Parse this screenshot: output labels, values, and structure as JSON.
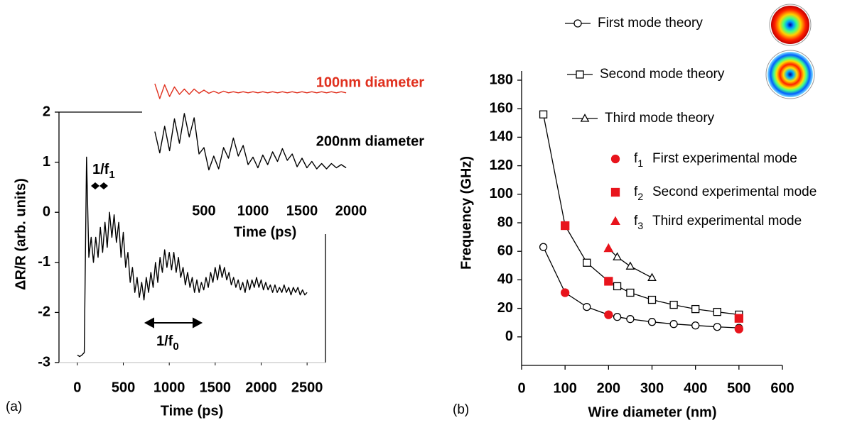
{
  "chart_data": [
    {
      "type": "line",
      "panel_label": "(a)",
      "x_label": "Time (ps)",
      "y_label": "ΔR/R (arb. units)",
      "color": "#000000",
      "xlim": [
        -200,
        2700
      ],
      "ylim": [
        -3,
        2
      ],
      "xticks": [
        0,
        500,
        1000,
        1500,
        2000,
        2500
      ],
      "yticks": [
        -3,
        -2,
        -1,
        0,
        1,
        2
      ],
      "annotations": [
        {
          "text": "1/f",
          "sub": "1"
        },
        {
          "text": "1/f",
          "sub": "0"
        }
      ],
      "x": [
        0,
        25,
        50,
        75,
        100,
        125,
        150,
        175,
        200,
        225,
        250,
        275,
        300,
        325,
        350,
        375,
        400,
        425,
        450,
        475,
        500,
        525,
        550,
        575,
        600,
        625,
        650,
        675,
        700,
        725,
        750,
        775,
        800,
        825,
        850,
        875,
        900,
        925,
        950,
        975,
        1000,
        1025,
        1050,
        1075,
        1100,
        1125,
        1150,
        1175,
        1200,
        1225,
        1250,
        1275,
        1300,
        1325,
        1350,
        1375,
        1400,
        1425,
        1450,
        1475,
        1500,
        1525,
        1550,
        1575,
        1600,
        1625,
        1650,
        1675,
        1700,
        1725,
        1750,
        1775,
        1800,
        1825,
        1850,
        1875,
        1900,
        1925,
        1950,
        1975,
        2000,
        2025,
        2050,
        2075,
        2100,
        2125,
        2150,
        2175,
        2200,
        2225,
        2250,
        2275,
        2300,
        2325,
        2350,
        2375,
        2400,
        2425,
        2450,
        2475,
        2500
      ],
      "values": [
        -2.85,
        -2.88,
        -2.85,
        -2.8,
        1.1,
        -0.9,
        -0.5,
        -1.0,
        -0.5,
        -0.9,
        -0.3,
        -0.8,
        -0.2,
        -0.7,
        0.0,
        -0.5,
        -0.05,
        -0.6,
        -0.2,
        -0.9,
        -0.4,
        -1.1,
        -0.8,
        -1.4,
        -1.1,
        -1.6,
        -1.3,
        -1.7,
        -1.4,
        -1.75,
        -1.3,
        -1.6,
        -1.2,
        -1.5,
        -1.0,
        -1.4,
        -0.9,
        -1.2,
        -0.75,
        -1.1,
        -0.8,
        -1.15,
        -0.8,
        -1.2,
        -0.9,
        -1.3,
        -1.1,
        -1.45,
        -1.2,
        -1.5,
        -1.3,
        -1.6,
        -1.35,
        -1.6,
        -1.4,
        -1.55,
        -1.3,
        -1.5,
        -1.2,
        -1.4,
        -1.1,
        -1.35,
        -1.05,
        -1.3,
        -1.1,
        -1.35,
        -1.2,
        -1.45,
        -1.3,
        -1.5,
        -1.35,
        -1.55,
        -1.4,
        -1.6,
        -1.35,
        -1.55,
        -1.35,
        -1.5,
        -1.3,
        -1.5,
        -1.35,
        -1.55,
        -1.4,
        -1.55,
        -1.45,
        -1.6,
        -1.45,
        -1.6,
        -1.5,
        -1.6,
        -1.45,
        -1.6,
        -1.5,
        -1.65,
        -1.5,
        -1.6,
        -1.5,
        -1.65,
        -1.55,
        -1.65,
        -1.6
      ]
    },
    {
      "type": "line",
      "x_label": "Time (ps)",
      "xlim": [
        -130,
        2000
      ],
      "ylim": [
        0,
        10
      ],
      "xticks": [
        500,
        1000,
        1500,
        2000
      ],
      "x": [
        0,
        50,
        100,
        150,
        200,
        250,
        300,
        350,
        400,
        450,
        500,
        550,
        600,
        650,
        700,
        750,
        800,
        850,
        900,
        950,
        1000,
        1050,
        1100,
        1150,
        1200,
        1250,
        1300,
        1350,
        1400,
        1450,
        1500,
        1550,
        1600,
        1650,
        1700,
        1750,
        1800,
        1850,
        1900,
        1950
      ],
      "series": [
        {
          "name": "100nm diameter",
          "color": "#e0301e",
          "values": [
            8.8,
            7.4,
            8.7,
            7.6,
            8.5,
            7.8,
            8.3,
            7.8,
            8.3,
            7.9,
            8.2,
            7.9,
            8.1,
            7.9,
            8.1,
            7.95,
            8.05,
            7.95,
            8.05,
            7.95,
            8.05,
            7.95,
            8.05,
            7.95,
            8.05,
            7.95,
            8.05,
            7.95,
            8.05,
            7.95,
            8.05,
            7.95,
            8.05,
            7.95,
            8.05,
            7.95,
            8.05,
            7.95,
            8.05,
            7.95
          ]
        },
        {
          "name": "200nm diameter",
          "color": "#000000",
          "values": [
            4.3,
            2.3,
            4.8,
            2.5,
            5.5,
            3.2,
            6.0,
            3.8,
            5.6,
            2.2,
            2.8,
            0.7,
            2.0,
            0.8,
            2.8,
            1.8,
            3.7,
            2.0,
            3.0,
            1.2,
            1.9,
            0.9,
            2.1,
            1.2,
            2.4,
            1.5,
            2.7,
            1.6,
            2.2,
            1.0,
            1.8,
            0.9,
            1.5,
            0.8,
            1.3,
            0.8,
            1.3,
            0.9,
            1.2,
            0.9
          ]
        }
      ]
    },
    {
      "type": "scatter",
      "panel_label": "(b)",
      "x_label": "Wire diameter (nm)",
      "y_label": "Frequency (GHz)",
      "xlim": [
        0,
        600
      ],
      "ylim": [
        -20,
        180
      ],
      "xticks": [
        0,
        100,
        200,
        300,
        400,
        500,
        600
      ],
      "yticks": [
        0,
        20,
        40,
        60,
        80,
        100,
        120,
        140,
        160,
        180
      ],
      "series": [
        {
          "name": "First mode theory",
          "marker": "circle",
          "color": "#000000",
          "filled": false,
          "connect": true,
          "x": [
            50,
            100,
            150,
            200,
            220,
            250,
            300,
            350,
            400,
            450,
            500
          ],
          "values": [
            63,
            31,
            21,
            15.5,
            14,
            12.5,
            10.5,
            9,
            8,
            7,
            6.3
          ]
        },
        {
          "name": "Second mode theory",
          "marker": "square",
          "color": "#000000",
          "filled": false,
          "connect": true,
          "x": [
            50,
            100,
            150,
            200,
            220,
            250,
            300,
            350,
            400,
            450,
            500
          ],
          "values": [
            156,
            78,
            52,
            39,
            35.5,
            31,
            26,
            22.5,
            19.5,
            17.5,
            15.6
          ]
        },
        {
          "name": "Third mode theory",
          "marker": "triangle",
          "color": "#000000",
          "filled": false,
          "connect": true,
          "x": [
            200,
            220,
            250,
            300
          ],
          "values": [
            62,
            56,
            49.5,
            41.5
          ]
        },
        {
          "name": "First experimental mode",
          "symbol": {
            "text": "f",
            "sub": "1"
          },
          "marker": "circle",
          "color": "#e8141c",
          "filled": true,
          "connect": false,
          "x": [
            100,
            200,
            500
          ],
          "values": [
            31,
            15.5,
            5.5
          ]
        },
        {
          "name": "Second experimental mode",
          "symbol": {
            "text": "f",
            "sub": "2"
          },
          "marker": "square",
          "color": "#e8141c",
          "filled": true,
          "connect": false,
          "x": [
            100,
            200,
            500
          ],
          "values": [
            78,
            39,
            13
          ]
        },
        {
          "name": "Third experimental  mode",
          "symbol": {
            "text": "f",
            "sub": "3"
          },
          "marker": "triangle",
          "color": "#e8141c",
          "filled": true,
          "connect": false,
          "x": [
            200
          ],
          "values": [
            62
          ]
        }
      ]
    }
  ]
}
